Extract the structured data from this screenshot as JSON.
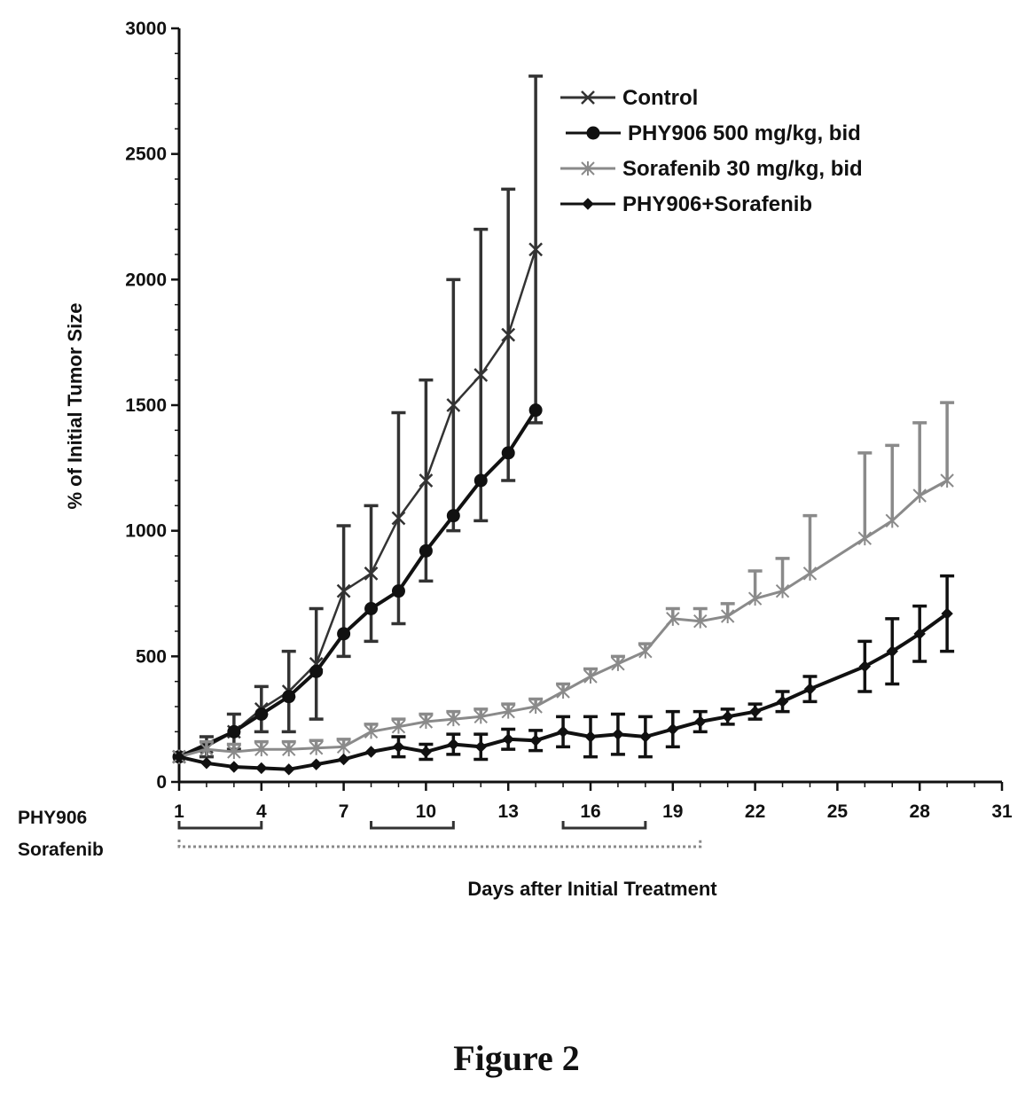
{
  "figure_caption": "Figure 2",
  "chart_data": {
    "type": "line",
    "xlabel": "Days after Initial Treatment",
    "ylabel": "% of Initial Tumor Size",
    "xlim": [
      1,
      31
    ],
    "ylim": [
      0,
      3000
    ],
    "x_ticks": [
      1,
      4,
      7,
      10,
      13,
      16,
      19,
      22,
      25,
      28,
      31
    ],
    "y_ticks": [
      0,
      500,
      1000,
      1500,
      2000,
      2500,
      3000
    ],
    "grid": false,
    "legend_position": "top-right",
    "series": [
      {
        "name": "Control",
        "color": "#333333",
        "marker": "x",
        "error_direction": "both",
        "points": [
          {
            "x": 1,
            "y": 100,
            "err": 0
          },
          {
            "x": 2,
            "y": 140,
            "err": 40
          },
          {
            "x": 3,
            "y": 200,
            "err": 70
          },
          {
            "x": 4,
            "y": 290,
            "err": 90
          },
          {
            "x": 5,
            "y": 360,
            "err": 160
          },
          {
            "x": 6,
            "y": 470,
            "err": 220
          },
          {
            "x": 7,
            "y": 760,
            "err": 260
          },
          {
            "x": 8,
            "y": 830,
            "err": 270
          },
          {
            "x": 9,
            "y": 1050,
            "err": 420
          },
          {
            "x": 10,
            "y": 1200,
            "err": 400
          },
          {
            "x": 11,
            "y": 1500,
            "err": 500
          },
          {
            "x": 12,
            "y": 1620,
            "err": 580
          },
          {
            "x": 13,
            "y": 1780,
            "err": 580
          },
          {
            "x": 14,
            "y": 2120,
            "err": 690
          }
        ]
      },
      {
        "name": "PHY906 500 mg/kg, bid",
        "color": "#111111",
        "marker": "circle",
        "error_direction": "both",
        "points": [
          {
            "x": 1,
            "y": 100,
            "err": 0
          },
          {
            "x": 3,
            "y": 200,
            "err": 0
          },
          {
            "x": 4,
            "y": 270,
            "err": 0
          },
          {
            "x": 5,
            "y": 340,
            "err": 0
          },
          {
            "x": 6,
            "y": 440,
            "err": 0
          },
          {
            "x": 7,
            "y": 590,
            "err": 0
          },
          {
            "x": 8,
            "y": 690,
            "err": 0
          },
          {
            "x": 9,
            "y": 760,
            "err": 0
          },
          {
            "x": 10,
            "y": 920,
            "err": 0
          },
          {
            "x": 11,
            "y": 1060,
            "err": 0
          },
          {
            "x": 12,
            "y": 1200,
            "err": 0
          },
          {
            "x": 13,
            "y": 1310,
            "err": 0
          },
          {
            "x": 14,
            "y": 1480,
            "err": 0
          }
        ]
      },
      {
        "name": "Sorafenib 30 mg/kg, bid",
        "color": "#8a8a8a",
        "marker": "star",
        "error_direction": "up",
        "points": [
          {
            "x": 1,
            "y": 100,
            "err": 0
          },
          {
            "x": 2,
            "y": 130,
            "err": 30
          },
          {
            "x": 3,
            "y": 120,
            "err": 30
          },
          {
            "x": 4,
            "y": 130,
            "err": 30
          },
          {
            "x": 5,
            "y": 130,
            "err": 30
          },
          {
            "x": 6,
            "y": 135,
            "err": 30
          },
          {
            "x": 7,
            "y": 140,
            "err": 30
          },
          {
            "x": 8,
            "y": 200,
            "err": 30
          },
          {
            "x": 9,
            "y": 220,
            "err": 30
          },
          {
            "x": 10,
            "y": 240,
            "err": 30
          },
          {
            "x": 11,
            "y": 250,
            "err": 30
          },
          {
            "x": 12,
            "y": 260,
            "err": 30
          },
          {
            "x": 13,
            "y": 280,
            "err": 30
          },
          {
            "x": 14,
            "y": 300,
            "err": 30
          },
          {
            "x": 15,
            "y": 360,
            "err": 30
          },
          {
            "x": 16,
            "y": 420,
            "err": 30
          },
          {
            "x": 17,
            "y": 470,
            "err": 30
          },
          {
            "x": 18,
            "y": 520,
            "err": 30
          },
          {
            "x": 19,
            "y": 650,
            "err": 40
          },
          {
            "x": 20,
            "y": 640,
            "err": 50
          },
          {
            "x": 21,
            "y": 660,
            "err": 50
          },
          {
            "x": 22,
            "y": 730,
            "err": 110
          },
          {
            "x": 23,
            "y": 760,
            "err": 130
          },
          {
            "x": 24,
            "y": 830,
            "err": 230
          },
          {
            "x": 26,
            "y": 970,
            "err": 340
          },
          {
            "x": 27,
            "y": 1040,
            "err": 300
          },
          {
            "x": 28,
            "y": 1140,
            "err": 290
          },
          {
            "x": 29,
            "y": 1200,
            "err": 310
          }
        ]
      },
      {
        "name": "PHY906+Sorafenib",
        "color": "#111111",
        "marker": "diamond",
        "error_direction": "both",
        "points": [
          {
            "x": 1,
            "y": 100,
            "err": 0
          },
          {
            "x": 2,
            "y": 75,
            "err": 0
          },
          {
            "x": 3,
            "y": 60,
            "err": 0
          },
          {
            "x": 4,
            "y": 55,
            "err": 0
          },
          {
            "x": 5,
            "y": 50,
            "err": 0
          },
          {
            "x": 6,
            "y": 70,
            "err": 0
          },
          {
            "x": 7,
            "y": 90,
            "err": 0
          },
          {
            "x": 8,
            "y": 120,
            "err": 0
          },
          {
            "x": 9,
            "y": 140,
            "err": 40
          },
          {
            "x": 10,
            "y": 120,
            "err": 30
          },
          {
            "x": 11,
            "y": 150,
            "err": 40
          },
          {
            "x": 12,
            "y": 140,
            "err": 50
          },
          {
            "x": 13,
            "y": 170,
            "err": 40
          },
          {
            "x": 14,
            "y": 165,
            "err": 40
          },
          {
            "x": 15,
            "y": 200,
            "err": 60
          },
          {
            "x": 16,
            "y": 180,
            "err": 80
          },
          {
            "x": 17,
            "y": 190,
            "err": 80
          },
          {
            "x": 18,
            "y": 180,
            "err": 80
          },
          {
            "x": 19,
            "y": 210,
            "err": 70
          },
          {
            "x": 20,
            "y": 240,
            "err": 40
          },
          {
            "x": 21,
            "y": 260,
            "err": 30
          },
          {
            "x": 22,
            "y": 280,
            "err": 30
          },
          {
            "x": 23,
            "y": 320,
            "err": 40
          },
          {
            "x": 24,
            "y": 370,
            "err": 50
          },
          {
            "x": 26,
            "y": 460,
            "err": 100
          },
          {
            "x": 27,
            "y": 520,
            "err": 130
          },
          {
            "x": 28,
            "y": 590,
            "err": 110
          },
          {
            "x": 29,
            "y": 670,
            "err": 150
          }
        ]
      }
    ],
    "schedules": [
      {
        "label": "PHY906",
        "color": "#333333",
        "style": "bracket",
        "ranges": [
          [
            1,
            4
          ],
          [
            8,
            11
          ],
          [
            15,
            18
          ]
        ]
      },
      {
        "label": "Sorafenib",
        "color": "#8a8a8a",
        "style": "bracket",
        "ranges": [
          [
            1,
            20
          ]
        ]
      }
    ]
  }
}
